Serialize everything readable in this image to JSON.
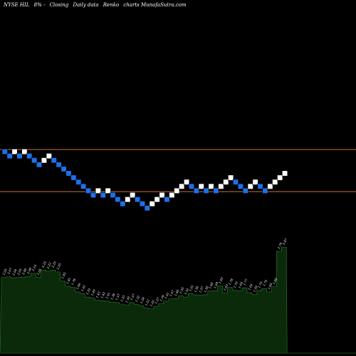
{
  "header": {
    "ticker": "NYSE HIL",
    "change": "8% -",
    "mode": "Closing",
    "period": "Daily data",
    "style": "Renko",
    "site": "charts MunafaSutra.com"
  },
  "chart_data": {
    "type": "renko",
    "title": "",
    "xlabel": "",
    "ylabel": "",
    "grid": false,
    "colors": {
      "background": "#000000",
      "up_brick": "#ffffff",
      "down_brick": "#1e6fe8",
      "level_line": "#c87533",
      "volume_fill": "#0a2a0a",
      "volume_stroke": "#2d7a2d"
    },
    "bricks": [
      {
        "i": 0,
        "level": 26,
        "dir": "down"
      },
      {
        "i": 1,
        "level": 25,
        "dir": "down"
      },
      {
        "i": 2,
        "level": 26,
        "dir": "up"
      },
      {
        "i": 3,
        "level": 25,
        "dir": "down"
      },
      {
        "i": 4,
        "level": 26,
        "dir": "up"
      },
      {
        "i": 5,
        "level": 25,
        "dir": "down"
      },
      {
        "i": 6,
        "level": 24,
        "dir": "down"
      },
      {
        "i": 7,
        "level": 23,
        "dir": "down"
      },
      {
        "i": 8,
        "level": 24,
        "dir": "up"
      },
      {
        "i": 9,
        "level": 25,
        "dir": "up"
      },
      {
        "i": 10,
        "level": 24,
        "dir": "down"
      },
      {
        "i": 11,
        "level": 23,
        "dir": "down"
      },
      {
        "i": 12,
        "level": 22,
        "dir": "down"
      },
      {
        "i": 13,
        "level": 21,
        "dir": "down"
      },
      {
        "i": 14,
        "level": 20,
        "dir": "down"
      },
      {
        "i": 15,
        "level": 19,
        "dir": "down"
      },
      {
        "i": 16,
        "level": 18,
        "dir": "down"
      },
      {
        "i": 17,
        "level": 17,
        "dir": "down"
      },
      {
        "i": 18,
        "level": 16,
        "dir": "down"
      },
      {
        "i": 19,
        "level": 17,
        "dir": "up"
      },
      {
        "i": 20,
        "level": 16,
        "dir": "down"
      },
      {
        "i": 21,
        "level": 17,
        "dir": "up"
      },
      {
        "i": 22,
        "level": 16,
        "dir": "down"
      },
      {
        "i": 23,
        "level": 15,
        "dir": "down"
      },
      {
        "i": 24,
        "level": 14,
        "dir": "down"
      },
      {
        "i": 25,
        "level": 15,
        "dir": "up"
      },
      {
        "i": 26,
        "level": 16,
        "dir": "up"
      },
      {
        "i": 27,
        "level": 15,
        "dir": "down"
      },
      {
        "i": 28,
        "level": 14,
        "dir": "down"
      },
      {
        "i": 29,
        "level": 13,
        "dir": "down"
      },
      {
        "i": 30,
        "level": 14,
        "dir": "up"
      },
      {
        "i": 31,
        "level": 15,
        "dir": "up"
      },
      {
        "i": 32,
        "level": 16,
        "dir": "up"
      },
      {
        "i": 33,
        "level": 15,
        "dir": "down"
      },
      {
        "i": 34,
        "level": 16,
        "dir": "up"
      },
      {
        "i": 35,
        "level": 17,
        "dir": "up"
      },
      {
        "i": 36,
        "level": 18,
        "dir": "up"
      },
      {
        "i": 37,
        "level": 19,
        "dir": "up"
      },
      {
        "i": 38,
        "level": 18,
        "dir": "down"
      },
      {
        "i": 39,
        "level": 17,
        "dir": "down"
      },
      {
        "i": 40,
        "level": 18,
        "dir": "up"
      },
      {
        "i": 41,
        "level": 17,
        "dir": "down"
      },
      {
        "i": 42,
        "level": 18,
        "dir": "up"
      },
      {
        "i": 43,
        "level": 17,
        "dir": "down"
      },
      {
        "i": 44,
        "level": 18,
        "dir": "up"
      },
      {
        "i": 45,
        "level": 19,
        "dir": "up"
      },
      {
        "i": 46,
        "level": 20,
        "dir": "up"
      },
      {
        "i": 47,
        "level": 19,
        "dir": "down"
      },
      {
        "i": 48,
        "level": 18,
        "dir": "down"
      },
      {
        "i": 49,
        "level": 17,
        "dir": "down"
      },
      {
        "i": 50,
        "level": 18,
        "dir": "up"
      },
      {
        "i": 51,
        "level": 19,
        "dir": "up"
      },
      {
        "i": 52,
        "level": 18,
        "dir": "down"
      },
      {
        "i": 53,
        "level": 17,
        "dir": "down"
      },
      {
        "i": 54,
        "level": 18,
        "dir": "up"
      },
      {
        "i": 55,
        "level": 19,
        "dir": "up"
      },
      {
        "i": 56,
        "level": 20,
        "dir": "up"
      },
      {
        "i": 57,
        "level": 21,
        "dir": "up"
      }
    ],
    "levels_max": 29,
    "reference_lines": [
      26,
      17
    ],
    "volume": [
      2.05,
      2.07,
      2.04,
      2.05,
      2.06,
      2.08,
      2.16,
      2.05,
      2.25,
      2.22,
      2.25,
      2.2,
      1.95,
      1.81,
      1.78,
      1.66,
      1.61,
      1.52,
      1.49,
      1.43,
      1.42,
      1.41,
      1.38,
      1.37,
      1.33,
      1.3,
      1.37,
      1.32,
      1.28,
      1.22,
      1.2,
      1.27,
      1.34,
      1.41,
      1.47,
      1.48,
      1.55,
      1.52,
      1.61,
      1.58,
      1.57,
      1.58,
      1.68,
      1.69,
      1.82,
      1.63,
      1.78,
      1.7,
      1.69,
      1.77,
      1.64,
      1.59,
      1.7,
      1.75,
      1.66,
      1.8,
      2.76,
      2.87
    ],
    "volume_labels": [
      "2.05",
      "2.07",
      "2.04",
      "2.05",
      "2.06",
      "2.08",
      "2.16",
      "2.05",
      "2.25",
      "2.22",
      "2.25",
      "2.20",
      "1.95",
      "1.81",
      "1.78",
      "1.66",
      "1.61",
      "1.52",
      "1.49",
      "1.43",
      "1.42",
      "1.41",
      "1.38",
      "1.37",
      "1.33",
      "1.30",
      "1.37",
      "1.32",
      "1.28",
      "1.22",
      "1.20",
      "1.27",
      "1.34",
      "1.41",
      "1.47",
      "1.48",
      "1.55",
      "1.52",
      "1.61",
      "1.58",
      "1.57",
      "1.58",
      "1.68",
      "1.69",
      "1.82",
      "1.63",
      "1.78",
      "1.70",
      "1.69",
      "1.77",
      "1.64",
      "1.59",
      "1.70",
      "1.75",
      "1.66",
      "1.80",
      "2.76",
      "2.87"
    ],
    "volume_max": 3.2
  }
}
